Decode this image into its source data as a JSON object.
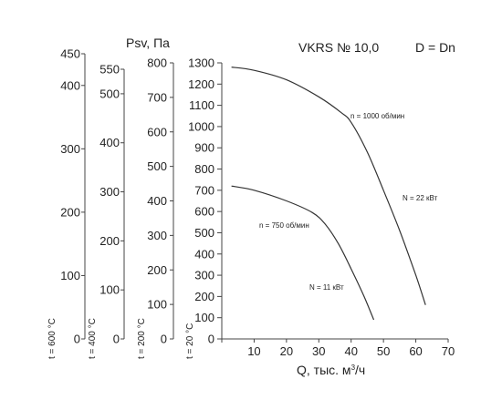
{
  "chart_data": {
    "type": "line",
    "title": "VKRS № 10,0",
    "subtitle": "D = Dn",
    "xlabel_prefix": "Q, тыс. м",
    "xlabel_sup": "3",
    "xlabel_suffix": "/ч",
    "ylabel": "Psv, Па",
    "xlim": [
      0,
      70
    ],
    "xticks": [
      0,
      10,
      20,
      30,
      40,
      50,
      60,
      70
    ],
    "y_axes": [
      {
        "label": "t = 20 °C",
        "ylim": [
          0,
          1300
        ],
        "ticks": [
          0,
          100,
          200,
          300,
          400,
          500,
          600,
          700,
          800,
          900,
          1000,
          1100,
          1200,
          1300
        ]
      },
      {
        "label": "t = 200 °C",
        "ylim": [
          0,
          800
        ],
        "ticks": [
          0,
          100,
          200,
          300,
          400,
          500,
          600,
          700,
          800
        ]
      },
      {
        "label": "t = 400 °C",
        "ylim": [
          0,
          550
        ],
        "ticks": [
          0,
          100,
          200,
          300,
          400,
          500,
          550
        ]
      },
      {
        "label": "t = 600 °C",
        "ylim": [
          0,
          450
        ],
        "ticks": [
          0,
          100,
          200,
          300,
          400,
          450
        ]
      }
    ],
    "series": [
      {
        "name": "n = 1000 об/мин",
        "power": "N = 22 кВт",
        "x": [
          3,
          10,
          20,
          30,
          37,
          40,
          45,
          50,
          55,
          60,
          63
        ],
        "y": [
          1280,
          1265,
          1220,
          1140,
          1065,
          1020,
          880,
          700,
          510,
          300,
          160
        ]
      },
      {
        "name": "n = 750 об/мин",
        "power": "N = 11 кВт",
        "x": [
          3,
          10,
          20,
          28,
          32,
          36,
          40,
          44,
          47
        ],
        "y": [
          720,
          700,
          650,
          595,
          540,
          450,
          330,
          200,
          90
        ]
      }
    ],
    "grid": false,
    "legend": "none"
  }
}
